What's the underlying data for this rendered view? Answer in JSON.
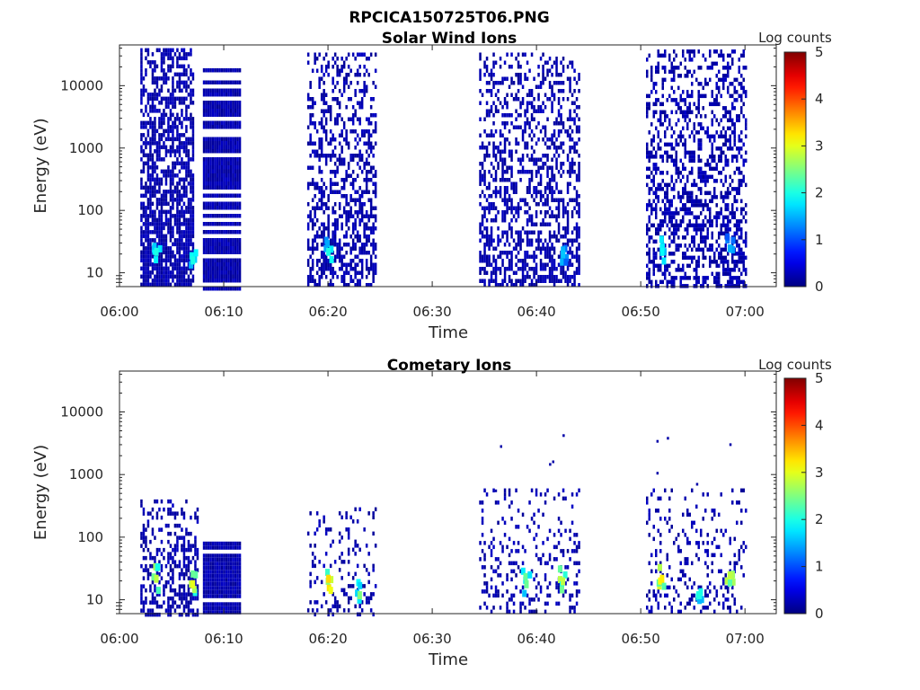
{
  "figure": {
    "title": "RPCICA150725T06.PNG"
  },
  "chart_data": [
    {
      "type": "heatmap",
      "title": "Solar Wind Ions",
      "xlabel": "Time",
      "ylabel": "Energy (eV)",
      "x_ticks": [
        "06:00",
        "06:10",
        "06:20",
        "06:30",
        "06:40",
        "06:50",
        "07:00"
      ],
      "x_range": [
        "06:00",
        "07:03"
      ],
      "y_scale": "log",
      "y_ticks": [
        10,
        100,
        1000,
        10000
      ],
      "y_range": [
        6,
        45000
      ],
      "colorbar": {
        "label": "Log counts",
        "range": [
          0,
          5
        ],
        "ticks": [
          0,
          1,
          2,
          3,
          4,
          5
        ],
        "colormap": "jet"
      },
      "data_blocks": [
        {
          "start": "06:02",
          "end": "06:07",
          "e_min": 6,
          "e_max": 40000,
          "density": "high",
          "hotspots": [
            {
              "time": "06:03.5",
              "energy": 22,
              "log_counts": 2.0
            },
            {
              "time": "06:07.0",
              "energy": 16,
              "log_counts": 2.0
            }
          ]
        },
        {
          "start": "06:08",
          "end": "06:11.5",
          "e_min": 6,
          "e_max": 19000,
          "density": "banded",
          "hotspots": []
        },
        {
          "start": "06:18",
          "end": "06:24.5",
          "e_min": 6,
          "e_max": 34000,
          "density": "medium",
          "hotspots": [
            {
              "time": "06:20.0",
              "energy": 22,
              "log_counts": 2.0
            }
          ]
        },
        {
          "start": "06:34.5",
          "end": "06:44",
          "e_min": 6,
          "e_max": 34000,
          "density": "medium",
          "hotspots": [
            {
              "time": "06:42.5",
              "energy": 20,
              "log_counts": 1.6
            }
          ]
        },
        {
          "start": "06:50.5",
          "end": "07:00",
          "e_min": 6,
          "e_max": 38000,
          "density": "medium",
          "hotspots": [
            {
              "time": "06:52.0",
              "energy": 22,
              "log_counts": 1.9
            },
            {
              "time": "06:58.5",
              "energy": 25,
              "log_counts": 1.5
            }
          ]
        }
      ]
    },
    {
      "type": "heatmap",
      "title": "Cometary Ions",
      "xlabel": "Time",
      "ylabel": "Energy (eV)",
      "x_ticks": [
        "06:00",
        "06:10",
        "06:20",
        "06:30",
        "06:40",
        "06:50",
        "07:00"
      ],
      "x_range": [
        "06:00",
        "07:03"
      ],
      "y_scale": "log",
      "y_ticks": [
        10,
        100,
        1000,
        10000
      ],
      "y_range": [
        6,
        45000
      ],
      "colorbar": {
        "label": "Log counts",
        "range": [
          0,
          5
        ],
        "ticks": [
          0,
          1,
          2,
          3,
          4,
          5
        ],
        "colormap": "jet"
      },
      "data_blocks": [
        {
          "start": "06:02",
          "end": "06:07.5",
          "e_min": 6,
          "e_max": 400,
          "density": "medium",
          "hotspots": [
            {
              "time": "06:03.5",
              "energy": 22,
              "log_counts": 2.8
            },
            {
              "time": "06:07.0",
              "energy": 18,
              "log_counts": 3.0
            }
          ]
        },
        {
          "start": "06:08",
          "end": "06:11.5",
          "e_min": 6,
          "e_max": 85,
          "density": "banded",
          "hotspots": []
        },
        {
          "start": "06:18",
          "end": "06:24.5",
          "e_min": 6,
          "e_max": 300,
          "density": "sparse",
          "hotspots": [
            {
              "time": "06:20.0",
              "energy": 22,
              "log_counts": 3.3
            },
            {
              "time": "06:23.0",
              "energy": 12,
              "log_counts": 2.5
            }
          ]
        },
        {
          "start": "06:34.5",
          "end": "06:44",
          "e_min": 6,
          "e_max": 600,
          "density": "sparse",
          "hotspots": [
            {
              "time": "06:39.0",
              "energy": 18,
              "log_counts": 2.4
            },
            {
              "time": "06:42.5",
              "energy": 20,
              "log_counts": 2.8
            }
          ]
        },
        {
          "start": "06:50.5",
          "end": "07:00",
          "e_min": 6,
          "e_max": 600,
          "density": "sparse",
          "hotspots": [
            {
              "time": "06:52.0",
              "energy": 22,
              "log_counts": 3.2
            },
            {
              "time": "06:55.5",
              "energy": 12,
              "log_counts": 2.0
            },
            {
              "time": "06:58.5",
              "energy": 25,
              "log_counts": 2.8
            }
          ]
        }
      ],
      "outliers": [
        {
          "time": "06:36.5",
          "energy": 2800
        },
        {
          "time": "06:36.0",
          "energy": 550
        },
        {
          "time": "06:41.5",
          "energy": 1600
        },
        {
          "time": "06:41.2",
          "energy": 1450
        },
        {
          "time": "06:42.5",
          "energy": 4200
        },
        {
          "time": "06:51.5",
          "energy": 3400
        },
        {
          "time": "06:51.5",
          "energy": 1050
        },
        {
          "time": "06:52.5",
          "energy": 3800
        },
        {
          "time": "06:55.3",
          "energy": 700
        },
        {
          "time": "06:58.5",
          "energy": 3000
        }
      ]
    }
  ]
}
